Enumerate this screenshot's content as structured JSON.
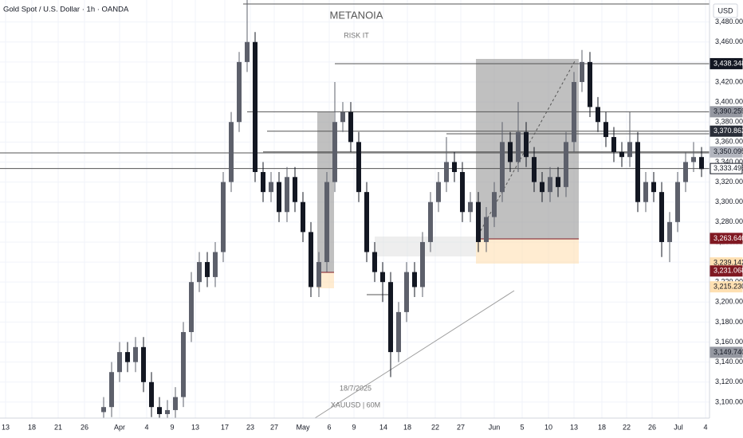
{
  "chart_data": {
    "type": "candlestick",
    "title": "Gold Spot / U.S. Dollar · 1h · OANDA",
    "currency": "USD",
    "annotations": [
      "METANOIA",
      "RISK IT",
      "18/7/2025",
      "XAUUSD | 60M"
    ],
    "up_color": "#5d606b",
    "down_color": "#131722",
    "x": [
      13,
      14,
      15,
      16,
      17,
      18,
      19,
      20,
      21,
      22,
      23,
      24,
      25,
      26,
      27,
      28,
      29,
      30,
      31,
      32,
      33,
      34,
      35,
      36,
      37,
      38,
      39,
      40,
      41,
      42,
      43,
      44,
      45,
      46,
      47,
      48,
      49,
      50,
      51,
      52,
      53,
      54,
      55,
      56,
      57,
      58,
      59,
      60,
      61,
      62,
      63,
      64,
      65,
      66,
      67,
      68,
      69,
      70,
      71,
      72,
      73,
      74,
      75,
      76,
      77,
      78,
      79,
      80,
      81,
      82,
      83,
      84,
      85,
      86,
      87,
      88
    ],
    "open": [
      3090,
      3095,
      3130,
      3150,
      3140,
      3155,
      3120,
      3095,
      3088,
      3092,
      3105,
      3170,
      3220,
      3240,
      3225,
      3250,
      3320,
      3380,
      3440,
      3460,
      3330,
      3310,
      3320,
      3290,
      3325,
      3300,
      3270,
      3215,
      3240,
      3320,
      3380,
      3390,
      3360,
      3310,
      3250,
      3230,
      3220,
      3150,
      3190,
      3230,
      3215,
      3260,
      3300,
      3320,
      3340,
      3330,
      3290,
      3300,
      3260,
      3285,
      3310,
      3360,
      3340,
      3370,
      3345,
      3320,
      3310,
      3325,
      3315,
      3360,
      3420,
      3440,
      3395,
      3380,
      3365,
      3350,
      3345,
      3360,
      3300,
      3320,
      3310,
      3260,
      3280,
      3320,
      3340,
      3345
    ],
    "high": [
      3105,
      3140,
      3160,
      3160,
      3165,
      3165,
      3130,
      3105,
      3102,
      3115,
      3180,
      3230,
      3250,
      3250,
      3260,
      3330,
      3390,
      3450,
      3502,
      3470,
      3340,
      3330,
      3330,
      3335,
      3335,
      3310,
      3280,
      3250,
      3330,
      3420,
      3400,
      3400,
      3370,
      3320,
      3260,
      3240,
      3230,
      3200,
      3240,
      3240,
      3270,
      3310,
      3330,
      3365,
      3350,
      3340,
      3310,
      3310,
      3295,
      3320,
      3380,
      3370,
      3400,
      3380,
      3355,
      3330,
      3335,
      3335,
      3370,
      3430,
      3452,
      3450,
      3405,
      3390,
      3375,
      3360,
      3390,
      3370,
      3330,
      3330,
      3320,
      3290,
      3330,
      3350,
      3360,
      3355
    ],
    "low": [
      3080,
      3085,
      3120,
      3130,
      3130,
      3110,
      3085,
      3080,
      3078,
      3082,
      3095,
      3160,
      3210,
      3215,
      3215,
      3240,
      3310,
      3370,
      3430,
      3320,
      3300,
      3300,
      3280,
      3280,
      3290,
      3260,
      3205,
      3205,
      3230,
      3310,
      3370,
      3350,
      3300,
      3240,
      3220,
      3200,
      3125,
      3140,
      3180,
      3205,
      3205,
      3250,
      3290,
      3310,
      3320,
      3280,
      3280,
      3250,
      3250,
      3275,
      3300,
      3330,
      3330,
      3335,
      3310,
      3300,
      3300,
      3305,
      3305,
      3350,
      3410,
      3385,
      3370,
      3355,
      3340,
      3335,
      3335,
      3290,
      3290,
      3300,
      3245,
      3240,
      3270,
      3310,
      3330,
      3325
    ],
    "close": [
      3095,
      3130,
      3150,
      3140,
      3155,
      3120,
      3095,
      3088,
      3092,
      3105,
      3170,
      3220,
      3240,
      3225,
      3250,
      3320,
      3380,
      3440,
      3460,
      3330,
      3310,
      3320,
      3290,
      3325,
      3300,
      3270,
      3215,
      3240,
      3320,
      3380,
      3390,
      3360,
      3310,
      3250,
      3230,
      3220,
      3150,
      3190,
      3230,
      3215,
      3260,
      3300,
      3320,
      3340,
      3330,
      3290,
      3300,
      3260,
      3285,
      3310,
      3360,
      3340,
      3370,
      3345,
      3320,
      3310,
      3325,
      3315,
      3360,
      3420,
      3440,
      3395,
      3380,
      3365,
      3350,
      3345,
      3360,
      3300,
      3320,
      3310,
      3260,
      3280,
      3320,
      3340,
      3345,
      3333
    ],
    "xlim": [
      0,
      89
    ],
    "xticks": [
      {
        "value": 0.7,
        "label": "13"
      },
      {
        "value": 4,
        "label": "18"
      },
      {
        "value": 7.3,
        "label": "21"
      },
      {
        "value": 10.6,
        "label": "26"
      },
      {
        "value": 15,
        "label": "Apr"
      },
      {
        "value": 18.4,
        "label": "4"
      },
      {
        "value": 21.6,
        "label": "9"
      },
      {
        "value": 24.5,
        "label": "13"
      },
      {
        "value": 28.2,
        "label": "17"
      },
      {
        "value": 31.4,
        "label": "23"
      },
      {
        "value": 34.4,
        "label": "27"
      },
      {
        "value": 38,
        "label": "May"
      },
      {
        "value": 41.3,
        "label": "6"
      },
      {
        "value": 44.4,
        "label": "9"
      },
      {
        "value": 48.1,
        "label": "14"
      },
      {
        "value": 51.1,
        "label": "18"
      },
      {
        "value": 54.6,
        "label": "22"
      },
      {
        "value": 57.8,
        "label": "27"
      },
      {
        "value": 62,
        "label": "Jun"
      },
      {
        "value": 65.5,
        "label": "5"
      },
      {
        "value": 68.8,
        "label": "10"
      },
      {
        "value": 72,
        "label": "13"
      },
      {
        "value": 75.5,
        "label": "18"
      },
      {
        "value": 78.6,
        "label": "22"
      },
      {
        "value": 81.8,
        "label": "26"
      },
      {
        "value": 85.1,
        "label": "Jul"
      },
      {
        "value": 88.5,
        "label": "4"
      }
    ],
    "ylim": [
      3084,
      3502
    ],
    "yticks": [
      {
        "value": 3100,
        "label": "3,100.000"
      },
      {
        "value": 3120,
        "label": "3,120.000"
      },
      {
        "value": 3140,
        "label": "3,140.000"
      },
      {
        "value": 3160,
        "label": "3,160.000"
      },
      {
        "value": 3180,
        "label": "3,180.000"
      },
      {
        "value": 3200,
        "label": "3,200.000"
      },
      {
        "value": 3220,
        "label": "3,220.000"
      },
      {
        "value": 3240,
        "label": "3,240.000"
      },
      {
        "value": 3260,
        "label": "3,260.000"
      },
      {
        "value": 3280,
        "label": "3,280.000"
      },
      {
        "value": 3300,
        "label": "3,300.000"
      },
      {
        "value": 3320,
        "label": "3,320.000"
      },
      {
        "value": 3340,
        "label": "3,340.000"
      },
      {
        "value": 3360,
        "label": "3,360.000"
      },
      {
        "value": 3380,
        "label": "3,380.000"
      },
      {
        "value": 3400,
        "label": "3,400.000"
      },
      {
        "value": 3420,
        "label": "3,420.000"
      },
      {
        "value": 3440,
        "label": "3,440.000"
      },
      {
        "value": 3460,
        "label": "3,460.000"
      },
      {
        "value": 3480,
        "label": "3,480.000"
      }
    ],
    "price_labels": [
      {
        "value": 3438.348,
        "label": "3,438.348",
        "color": "#131722",
        "text_color": "#ffffff"
      },
      {
        "value": 3390.259,
        "label": "3,390.259",
        "color": "#9598a1",
        "text_color": "#131722"
      },
      {
        "value": 3370.862,
        "label": "3,370.862",
        "color": "#2a2e39",
        "text_color": "#ffffff"
      },
      {
        "value": 3350.095,
        "label": "3,350.095",
        "color": "#b2b5be",
        "text_color": "#131722"
      },
      {
        "value": 3333.495,
        "label": "3,333.495",
        "color": "#ffffff",
        "text_color": "#131722"
      },
      {
        "value": 3263.64,
        "label": "3,263.640",
        "color": "#801922",
        "text_color": "#ffffff"
      },
      {
        "value": 3239.142,
        "label": "3,239.142",
        "color": "#ffe0b2",
        "text_color": "#131722"
      },
      {
        "value": 3231.068,
        "label": "3,231.068",
        "color": "#801922",
        "text_color": "#ffffff"
      },
      {
        "value": 3215.23,
        "label": "3,215.230",
        "color": "#ffe0b2",
        "text_color": "#131722"
      },
      {
        "value": 3149.74,
        "label": "3,149.740",
        "color": "#9598a1",
        "text_color": "#131722"
      }
    ]
  }
}
